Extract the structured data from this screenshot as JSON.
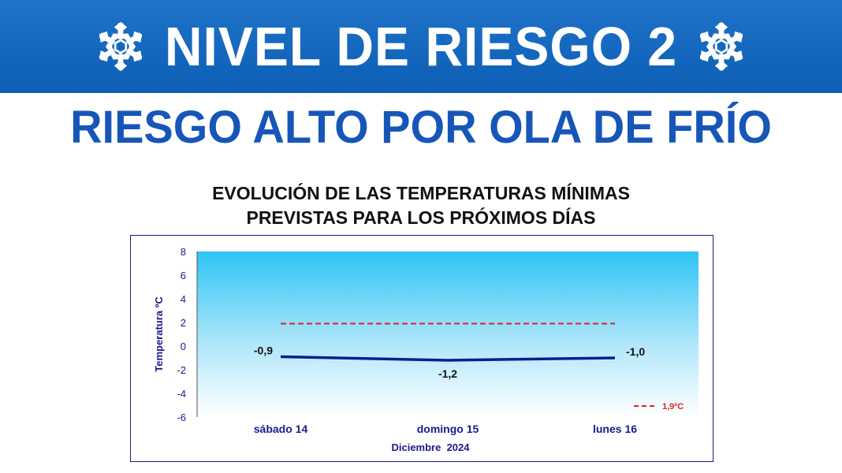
{
  "banner": {
    "title": "NIVEL DE RIESGO 2",
    "icon": "snowflake-icon"
  },
  "subtitle": "RIESGO ALTO POR OLA DE FRÍO",
  "colors": {
    "banner": "#0d5eb5",
    "subtitle": "#1656b8",
    "series": "#0a1f8f",
    "threshold": "#e82020",
    "axis_text": "#1a1a8a"
  },
  "chart_data": {
    "type": "line",
    "title": [
      "EVOLUCIÓN DE LAS TEMPERATURAS MÍNIMAS",
      "PREVISTAS PARA LOS PRÓXIMOS DÍAS"
    ],
    "categories": [
      "sábado 14",
      "domingo 15",
      "lunes 16"
    ],
    "xlabel": "Diciembre  2024",
    "ylabel": "Temperatura ºC",
    "ylim": [
      -6,
      8
    ],
    "yticks": [
      8,
      6,
      4,
      2,
      0,
      -2,
      -4,
      -6
    ],
    "grid": false,
    "series": [
      {
        "values": [
          -0.9,
          -1.2,
          -1.0
        ],
        "labels": [
          "-0,9",
          "-1,2",
          "-1,0"
        ],
        "style": "solid"
      },
      {
        "name": "1,9ºC",
        "values": [
          1.9,
          1.9,
          1.9
        ],
        "style": "dashed"
      }
    ],
    "legend": {
      "position": "bottom-right",
      "label": "1,9ºC"
    }
  }
}
